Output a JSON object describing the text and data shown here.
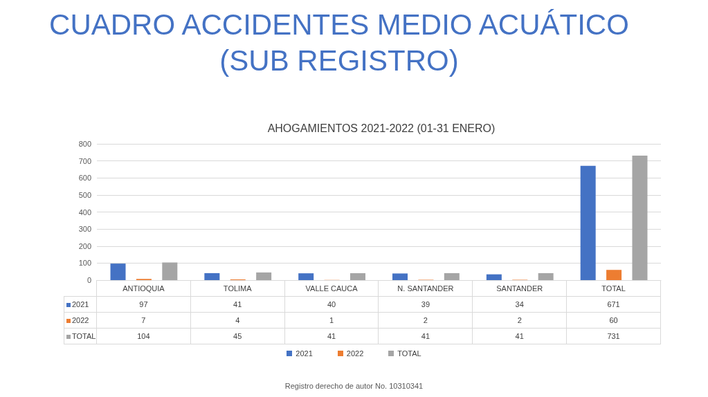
{
  "chart_data": {
    "type": "bar",
    "title": "CUADRO ACCIDENTES MEDIO ACUÁTICO (SUB REGISTRO)",
    "subtitle": "AHOGAMIENTOS 2021-2022 (01-31 ENERO)",
    "categories": [
      "ANTIOQUIA",
      "TOLIMA",
      "VALLE CAUCA",
      "N. SANTANDER",
      "SANTANDER",
      "TOTAL"
    ],
    "series": [
      {
        "name": "2021",
        "color": "#4472c4",
        "values": [
          97,
          41,
          40,
          39,
          34,
          671
        ]
      },
      {
        "name": "2022",
        "color": "#ed7d31",
        "values": [
          7,
          4,
          1,
          2,
          2,
          60
        ]
      },
      {
        "name": "TOTAL",
        "color": "#a5a5a5",
        "values": [
          104,
          45,
          41,
          41,
          41,
          731
        ]
      }
    ],
    "ylim": [
      0,
      800
    ],
    "yticks": [
      0,
      100,
      200,
      300,
      400,
      500,
      600,
      700,
      800
    ],
    "grid": "y",
    "legend": "bottom",
    "data_labels": true,
    "annotations": [
      "Registro derecho de autor No. 10310341"
    ]
  }
}
